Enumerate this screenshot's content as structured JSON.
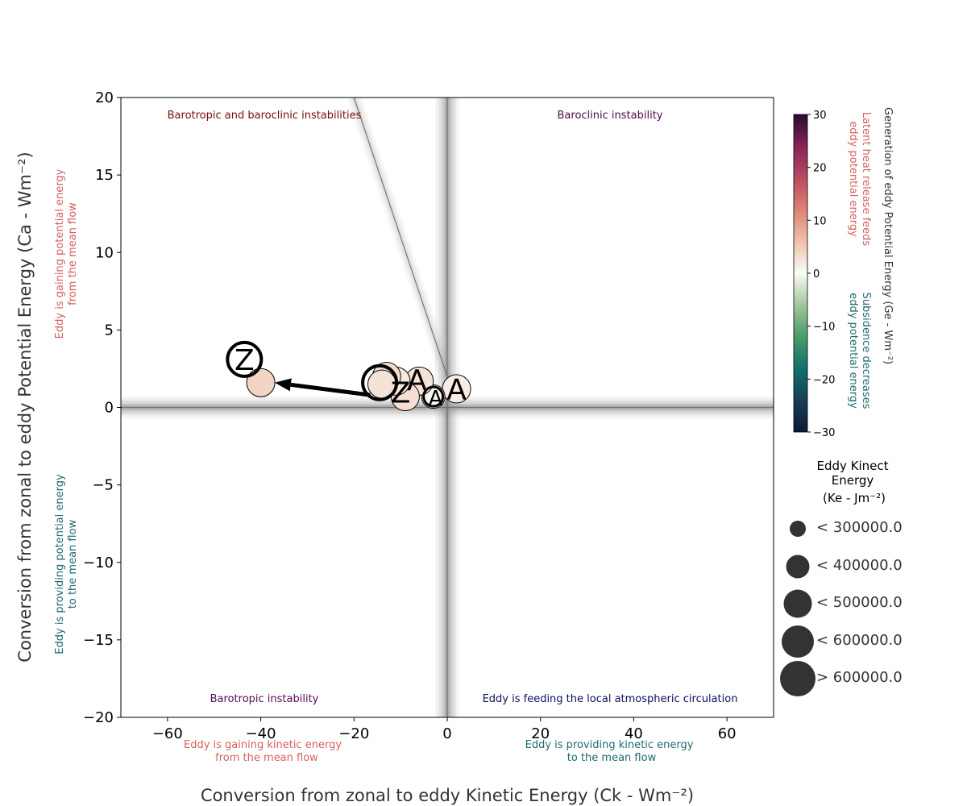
{
  "chart_data": {
    "type": "scatter",
    "xlabel": "Conversion from zonal to eddy Kinetic Energy (Ck - Wm⁻²)",
    "ylabel": "Conversion from zonal to eddy Potential Energy (Ca - Wm⁻²)",
    "xlim": [
      -70,
      70
    ],
    "ylim": [
      -20,
      20
    ],
    "xticks": [
      -60,
      -40,
      -20,
      0,
      20,
      40,
      60
    ],
    "yticks": [
      -20,
      -15,
      -10,
      -5,
      0,
      5,
      10,
      15,
      20
    ],
    "xtick_labels": [
      "−60",
      "−40",
      "−20",
      "0",
      "20",
      "40",
      "60"
    ],
    "ytick_labels": [
      "−20",
      "−15",
      "−10",
      "−5",
      "0",
      "5",
      "10",
      "15",
      "20"
    ],
    "grid": false,
    "quadrant_labels": {
      "top_left": "Barotropic and baroclinic instabilities",
      "top_right": "Baroclinic instability",
      "bottom_left": "Barotropic instability",
      "bottom_right": "Eddy is feeding the local atmospheric circulation"
    },
    "side_annotations": {
      "left_upper": [
        "Eddy is gaining potential energy",
        "from the mean flow"
      ],
      "left_lower": [
        "Eddy is providing potential energy",
        "to the mean flow"
      ],
      "bottom_left": [
        "Eddy is gaining kinetic energy",
        "from the mean flow"
      ],
      "bottom_right": [
        "Eddy is providing kinetic energy",
        "to the mean flow"
      ]
    },
    "reference_line": {
      "x": [
        -20,
        0
      ],
      "y": [
        20,
        2
      ]
    },
    "points": [
      {
        "x": 2.0,
        "y": 1.2,
        "ke": 450000,
        "ge": 1.5,
        "letter": ""
      },
      {
        "x": -3.0,
        "y": 0.7,
        "ke": 350000,
        "ge": 0.5,
        "letter": ""
      },
      {
        "x": -6.0,
        "y": 1.7,
        "ke": 450000,
        "ge": 2.5,
        "letter": ""
      },
      {
        "x": -9.0,
        "y": 0.7,
        "ke": 480000,
        "ge": 3.0,
        "letter": ""
      },
      {
        "x": -11.0,
        "y": 1.7,
        "ke": 420000,
        "ge": 2.0,
        "letter": ""
      },
      {
        "x": -13.0,
        "y": 2.0,
        "ke": 420000,
        "ge": 3.5,
        "letter": ""
      },
      {
        "x": -14.0,
        "y": 1.5,
        "ke": 450000,
        "ge": 2.5,
        "letter": ""
      },
      {
        "x": -40.0,
        "y": 1.6,
        "ke": 470000,
        "ge": 4.0,
        "letter": ""
      }
    ],
    "markers": [
      {
        "x": 2.0,
        "y": 1.2,
        "letter": "A",
        "ring": false,
        "size": "large"
      },
      {
        "x": -2.5,
        "y": 0.6,
        "letter": "A",
        "ring": false,
        "size": "small"
      },
      {
        "x": -3.0,
        "y": 0.7,
        "letter": "",
        "ring": true,
        "size": "small"
      },
      {
        "x": -6.5,
        "y": 1.8,
        "letter": "A",
        "ring": false,
        "size": "large"
      },
      {
        "x": -10.0,
        "y": 1.0,
        "letter": "Z",
        "ring": false,
        "size": "large"
      },
      {
        "x": -14.5,
        "y": 1.6,
        "letter": "",
        "ring": true,
        "size": "large"
      },
      {
        "x": -43.5,
        "y": 3.1,
        "letter": "Z",
        "ring": true,
        "size": "large"
      }
    ],
    "arrow": {
      "from": [
        -16.5,
        0.8
      ],
      "to": [
        -37,
        1.6
      ]
    },
    "colorbar": {
      "range": [
        -30,
        30
      ],
      "ticks": [
        30,
        20,
        10,
        0,
        -10,
        -20,
        -30
      ],
      "tick_labels": [
        "30",
        "20",
        "10",
        "0",
        "−10",
        "−20",
        "−30"
      ],
      "title": "Generation of eddy Potential Energy (Ge - Wm⁻²)",
      "positive_note": [
        "Latent heat release feeds",
        "eddy potential energy"
      ],
      "negative_note": [
        "Subsidence decreases",
        "eddy potential energy"
      ],
      "colors": [
        "#0f1934",
        "#173f57",
        "#12706c",
        "#4a9a6b",
        "#a3c79a",
        "#fbfbf8",
        "#efc2ab",
        "#db8372",
        "#bb4b61",
        "#852457",
        "#2b0a30"
      ]
    },
    "size_legend": {
      "title": [
        "Eddy Kinect",
        "Energy",
        "(Ke - Jm⁻²)"
      ],
      "items": [
        {
          "label": "< 300000.0",
          "r": 10
        },
        {
          "label": "< 400000.0",
          "r": 14.5
        },
        {
          "label": "< 500000.0",
          "r": 17.5
        },
        {
          "label": "< 600000.0",
          "r": 20
        },
        {
          "label": "> 600000.0",
          "r": 22
        }
      ]
    },
    "colors": {
      "red_note": "#d65f5f",
      "teal_note": "#1f6b70",
      "title_tl": "#7a0a0a",
      "title_tr": "#4b0a4b",
      "title_bl": "#5a0a5a",
      "title_br": "#0a1060",
      "marker_fill": "#f9e4de",
      "axis_text": "#333333"
    }
  }
}
